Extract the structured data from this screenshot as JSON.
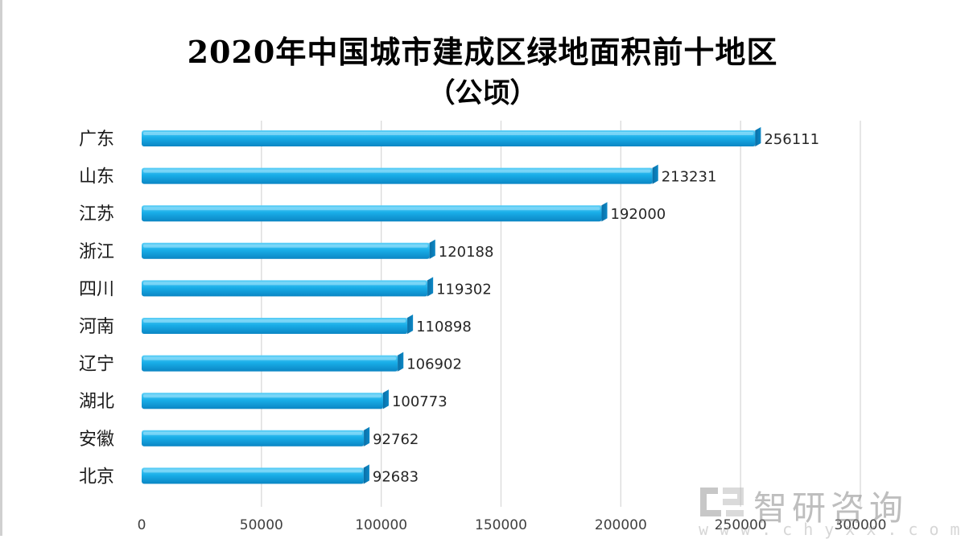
{
  "title_line1": "2020年中国城市建成区绿地面积前十地区",
  "title_line2": "（公顷）",
  "watermark": {
    "name": "智研咨询",
    "url": "www.chyxx.com",
    "logo_icon": "zhiyan-logo-icon"
  },
  "colors": {
    "bar_top": "#5fd0f7",
    "bar_mid": "#19aee8",
    "bar_bottom": "#0b86c4",
    "bar_end": "#0a6fa6",
    "grid": "#d9d9d9"
  },
  "chart_data": {
    "type": "bar",
    "orientation": "horizontal",
    "title": "2020年中国城市建成区绿地面积前十地区（公顷）",
    "categories": [
      "广东",
      "山东",
      "江苏",
      "浙江",
      "四川",
      "河南",
      "辽宁",
      "湖北",
      "安徽",
      "北京"
    ],
    "values": [
      256111,
      213231,
      192000,
      120188,
      119302,
      110898,
      106902,
      100773,
      92762,
      92683
    ],
    "xlim": [
      0,
      300000
    ],
    "xticks": [
      "0",
      "50000",
      "100000",
      "150000",
      "200000",
      "250000",
      "300000"
    ],
    "grid": true,
    "data_labels": true,
    "legend": "none"
  }
}
